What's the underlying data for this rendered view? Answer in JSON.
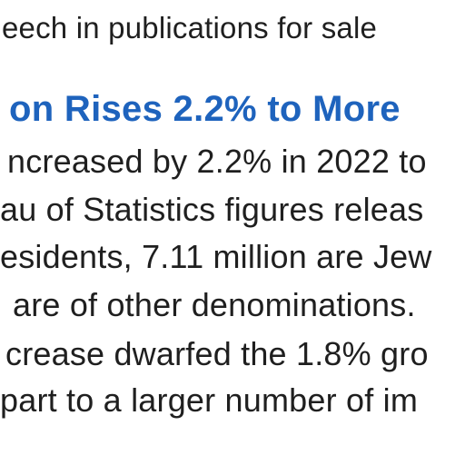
{
  "article": {
    "previous_line": "eech in publications for sale",
    "headline": "on Rises 2.2% to More",
    "body_lines": [
      "ncreased by 2.2% in 2022 to",
      "au of Statistics figures releas",
      "esidents, 7.11 million are Jew",
      "are of other denominations.",
      "crease dwarfed the 1.8% gro",
      "part to a larger number of im"
    ]
  },
  "colors": {
    "headline": "#1e63bd",
    "body_text": "#1f1f1f",
    "background": "#ffffff"
  }
}
